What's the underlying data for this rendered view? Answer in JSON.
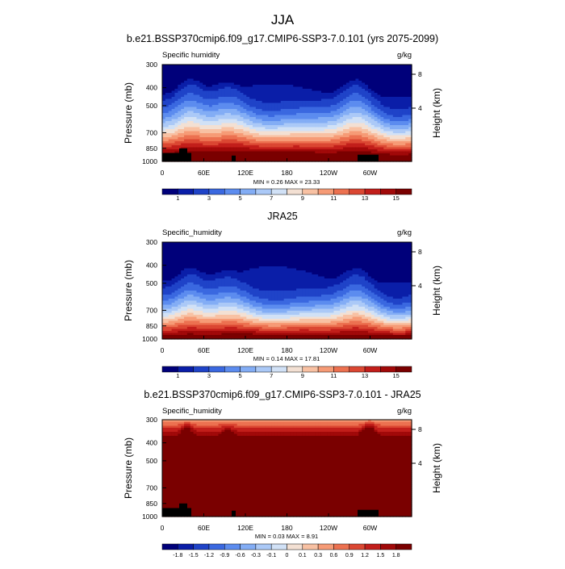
{
  "page": {
    "title": "JJA"
  },
  "palette": [
    "#00007a",
    "#0a1ea8",
    "#1f43c8",
    "#3a68e0",
    "#5c8cef",
    "#83adf5",
    "#abc9f7",
    "#d1e1f6",
    "#f3e0d3",
    "#f8c1a3",
    "#f69b76",
    "#ec7150",
    "#db4732",
    "#c21e1a",
    "#a10909",
    "#7a0000"
  ],
  "chart_data": [
    {
      "type": "heatmap",
      "title": "b.e21.BSSP370cmip6.f09_g17.CMIP6-SSP3-7.0.101 (yrs 2075-2099)",
      "left_label": "Specific humidity",
      "units": "g/kg",
      "ylabel": "Pressure (mb)",
      "ylabel_right": "Height (km)",
      "yticks": [
        "300",
        "400",
        "500",
        "700",
        "850",
        "1000"
      ],
      "yticks_right": [
        "8",
        "4"
      ],
      "xticks": [
        "0",
        "60E",
        "120E",
        "180",
        "120W",
        "60W"
      ],
      "xlim": [
        0,
        360
      ],
      "ylim": [
        1000,
        300
      ],
      "stats": "MIN =   0.26  MAX =  23.33",
      "colorbar_labels": [
        "1",
        "3",
        "5",
        "7",
        "9",
        "11",
        "13",
        "15"
      ],
      "levels": [
        0.5,
        1,
        2,
        3,
        4,
        5,
        6,
        7,
        8,
        9,
        10,
        11,
        12,
        13,
        14,
        15
      ]
    },
    {
      "type": "heatmap",
      "title": "JRA25",
      "left_label": "Specific_humidity",
      "units": "g/kg",
      "ylabel": "Pressure (mb)",
      "ylabel_right": "Height (km)",
      "yticks": [
        "300",
        "400",
        "500",
        "700",
        "850",
        "1000"
      ],
      "yticks_right": [
        "8",
        "4"
      ],
      "xticks": [
        "0",
        "60E",
        "120E",
        "180",
        "120W",
        "60W"
      ],
      "xlim": [
        0,
        360
      ],
      "ylim": [
        1000,
        300
      ],
      "stats": "MIN =   0.14  MAX =  17.81",
      "colorbar_labels": [
        "1",
        "3",
        "5",
        "7",
        "9",
        "11",
        "13",
        "15"
      ],
      "levels": [
        0.5,
        1,
        2,
        3,
        4,
        5,
        6,
        7,
        8,
        9,
        10,
        11,
        12,
        13,
        14,
        15
      ]
    },
    {
      "type": "heatmap",
      "title": "b.e21.BSSP370cmip6.f09_g17.CMIP6-SSP3-7.0.101 - JRA25",
      "left_label": "Specific_humidity",
      "units": "g/kg",
      "ylabel": "Pressure (mb)",
      "ylabel_right": "Height (km)",
      "yticks": [
        "300",
        "400",
        "500",
        "700",
        "850",
        "1000"
      ],
      "yticks_right": [
        "8",
        "4"
      ],
      "xticks": [
        "0",
        "60E",
        "120E",
        "180",
        "120W",
        "60W"
      ],
      "xlim": [
        0,
        360
      ],
      "ylim": [
        1000,
        300
      ],
      "stats": "MIN =   0.03  MAX =   8.91",
      "colorbar_labels": [
        "-1.8",
        "-1.5",
        "-1.2",
        "-0.9",
        "-0.6",
        "-0.3",
        "-0.1",
        "0",
        "0.1",
        "0.3",
        "0.6",
        "0.9",
        "1.2",
        "1.5",
        "1.8"
      ],
      "levels": [
        -1.8,
        -1.5,
        -1.2,
        -0.9,
        -0.6,
        -0.3,
        -0.1,
        0,
        0.1,
        0.3,
        0.6,
        0.9,
        1.2,
        1.5,
        1.8
      ]
    }
  ]
}
